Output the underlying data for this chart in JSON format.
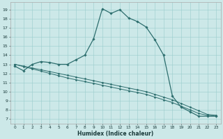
{
  "title": "",
  "xlabel": "Humidex (Indice chaleur)",
  "bg_color": "#cce8e8",
  "grid_color": "#99cccc",
  "line_color": "#2d6e6e",
  "line1_x": [
    0,
    1,
    2,
    3,
    4,
    5,
    6,
    7,
    8,
    9,
    10,
    11,
    12,
    13,
    14,
    15,
    16,
    17,
    18,
    19,
    20,
    21,
    22,
    23
  ],
  "line1_y": [
    12.8,
    12.3,
    13.0,
    13.3,
    13.2,
    13.0,
    13.0,
    13.5,
    14.0,
    15.8,
    19.1,
    18.6,
    19.0,
    18.1,
    17.7,
    17.1,
    15.7,
    14.0,
    9.5,
    8.3,
    7.8,
    7.3,
    7.3,
    7.3
  ],
  "line2_x": [
    0,
    1,
    2,
    3,
    4,
    5,
    6,
    7,
    8,
    9,
    10,
    11,
    12,
    13,
    14,
    15,
    16,
    17,
    18,
    19,
    20,
    21,
    22,
    23
  ],
  "line2_y": [
    13.0,
    12.8,
    12.6,
    12.4,
    12.2,
    12.0,
    11.8,
    11.6,
    11.4,
    11.2,
    11.0,
    10.8,
    10.6,
    10.4,
    10.2,
    10.0,
    9.7,
    9.4,
    9.1,
    8.7,
    8.3,
    7.9,
    7.5,
    7.4
  ],
  "line3_x": [
    0,
    1,
    2,
    3,
    4,
    5,
    6,
    7,
    8,
    9,
    10,
    11,
    12,
    13,
    14,
    15,
    16,
    17,
    18,
    19,
    20,
    21,
    22,
    23
  ],
  "line3_y": [
    13.0,
    12.75,
    12.5,
    12.25,
    12.0,
    11.75,
    11.5,
    11.3,
    11.1,
    10.9,
    10.7,
    10.5,
    10.3,
    10.1,
    9.9,
    9.7,
    9.4,
    9.1,
    8.8,
    8.4,
    8.0,
    7.6,
    7.4,
    7.3
  ],
  "xlim": [
    -0.5,
    23.5
  ],
  "ylim": [
    6.5,
    19.8
  ],
  "yticks": [
    7,
    8,
    9,
    10,
    11,
    12,
    13,
    14,
    15,
    16,
    17,
    18,
    19
  ],
  "xticks": [
    0,
    1,
    2,
    3,
    4,
    5,
    6,
    7,
    8,
    9,
    10,
    11,
    12,
    13,
    14,
    15,
    16,
    17,
    18,
    19,
    20,
    21,
    22,
    23
  ]
}
